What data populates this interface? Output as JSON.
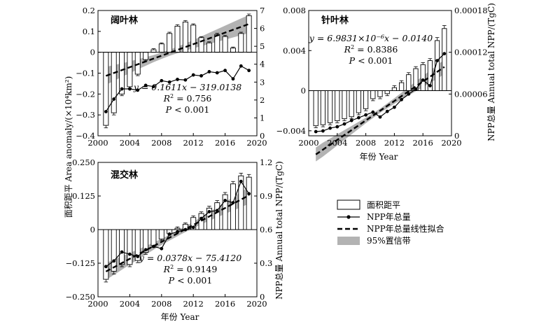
{
  "chart_data": [
    {
      "id": "broadleaf",
      "type": "bar",
      "title": "阔叶林",
      "x": [
        2001,
        2002,
        2003,
        2004,
        2005,
        2006,
        2007,
        2008,
        2009,
        2010,
        2011,
        2012,
        2013,
        2014,
        2015,
        2016,
        2017,
        2018,
        2019
      ],
      "area_anomaly": [
        -0.35,
        -0.29,
        -0.2,
        -0.165,
        -0.105,
        -0.035,
        0.012,
        0.04,
        0.09,
        0.125,
        0.145,
        0.13,
        0.07,
        0.045,
        0.085,
        0.075,
        0.02,
        0.09,
        0.175
      ],
      "area_err": [
        0.012,
        0.01,
        0.008,
        0.008,
        0.007,
        0.006,
        0.005,
        0.005,
        0.006,
        0.007,
        0.007,
        0.006,
        0.005,
        0.005,
        0.006,
        0.006,
        0.005,
        0.006,
        0.008
      ],
      "npp": [
        1.35,
        2.05,
        2.62,
        2.62,
        2.55,
        2.82,
        2.75,
        3.08,
        3.0,
        3.15,
        3.12,
        3.4,
        3.35,
        3.58,
        3.52,
        3.65,
        3.18,
        3.9,
        3.65
      ],
      "fit": {
        "slope": 0.1611,
        "intercept": -319.0138
      },
      "band_halfwidth": [
        0.5,
        0.44,
        0.38,
        0.33,
        0.28,
        0.24,
        0.2,
        0.18,
        0.17,
        0.18,
        0.2,
        0.23,
        0.27,
        0.31,
        0.35,
        0.39,
        0.43,
        0.47,
        0.5
      ],
      "ylim_left": [
        -0.4,
        0.2
      ],
      "yticks_left": [
        -0.4,
        -0.3,
        -0.2,
        -0.1,
        0,
        0.1,
        0.2
      ],
      "ytick_labels_left": [
        "−0.4",
        "−0.3",
        "−0.2",
        "−0.1",
        "0",
        "0.1",
        "0.2"
      ],
      "ylim_right": [
        0,
        7
      ],
      "yticks_right": [
        0,
        1,
        2,
        3,
        4,
        5,
        6,
        7
      ],
      "ytick_labels_right": [
        "0",
        "1",
        "2",
        "3",
        "4",
        "5",
        "6",
        "7"
      ],
      "xlim": [
        2000,
        2020
      ],
      "xticks": [
        2000,
        2004,
        2008,
        2012,
        2016,
        2020
      ],
      "xtick_labels": [
        "2000",
        "2004",
        "2008",
        "2012",
        "2016",
        "2020"
      ],
      "equation": "y = 0.1611x − 319.0138",
      "r2_label": "R",
      "r2_value": " = 0.756",
      "p_label": "P",
      "p_value": " < 0.001"
    },
    {
      "id": "conifer",
      "type": "bar",
      "title": "针叶林",
      "x": [
        2001,
        2002,
        2003,
        2004,
        2005,
        2006,
        2007,
        2008,
        2009,
        2010,
        2011,
        2012,
        2013,
        2014,
        2015,
        2016,
        2017,
        2018,
        2019
      ],
      "area_anomaly": [
        -0.0035,
        -0.0034,
        -0.0032,
        -0.003,
        -0.0028,
        -0.0026,
        -0.0022,
        -0.0018,
        -0.0008,
        -0.0006,
        -0.0003,
        0.0003,
        0.0008,
        0.0016,
        0.0022,
        0.0026,
        0.003,
        0.005,
        0.0062
      ],
      "area_err": [
        0.0002,
        0.0002,
        0.0002,
        0.0002,
        0.0002,
        0.0002,
        0.0002,
        0.0002,
        0.0002,
        0.0002,
        0.0002,
        0.0002,
        0.0002,
        0.0002,
        0.0002,
        0.0002,
        0.0002,
        0.0003,
        0.0003
      ],
      "npp": [
        6e-06,
        7e-06,
        1.1e-05,
        1.3e-05,
        1.7e-05,
        2.2e-05,
        2.6e-05,
        3e-05,
        3.4e-05,
        2.7e-05,
        3.5e-05,
        4.1e-05,
        5.2e-05,
        6e-05,
        6.7e-05,
        8e-05,
        7.2e-05,
        0.000108,
        0.000118
      ],
      "fit": {
        "slope": 6.9831e-06,
        "intercept": -0.014
      },
      "band_halfwidth": [
        1e-05,
        1e-05,
        9e-06,
        8e-06,
        7e-06,
        6e-06,
        5e-06,
        4e-06,
        3.5e-06,
        3e-06,
        3.5e-06,
        4e-06,
        5e-06,
        6e-06,
        7e-06,
        8e-06,
        9e-06,
        1e-05,
        1e-05
      ],
      "ylim_left": [
        -0.0045,
        0.008
      ],
      "yticks_left": [
        -0.004,
        0,
        0.004,
        0.008
      ],
      "ytick_labels_left": [
        "−0.004",
        "0",
        "0.004",
        "0.008"
      ],
      "ylim_right": [
        0,
        0.00018
      ],
      "yticks_right": [
        0,
        6e-05,
        0.00012,
        0.00018
      ],
      "ytick_labels_right": [
        "0",
        "0.00006",
        "0.00012",
        "0.00018"
      ],
      "xlim": [
        2000,
        2020
      ],
      "xticks": [
        2000,
        2004,
        2008,
        2012,
        2016,
        2020
      ],
      "xtick_labels": [
        "2000",
        "2004",
        "2008",
        "2012",
        "2016",
        "2020"
      ],
      "equation": "y = 6.9831×10⁻⁶x − 0.0140",
      "r2_label": "R",
      "r2_value": " = 0.8386",
      "p_label": "P",
      "p_value": " < 0.001",
      "xlabel": "年份 Year",
      "ylabel_right": "NPP总量 Annual total NPP/(TgC)"
    },
    {
      "id": "mixed",
      "type": "bar",
      "title": "混交林",
      "x": [
        2001,
        2002,
        2003,
        2004,
        2005,
        2006,
        2007,
        2008,
        2009,
        2010,
        2011,
        2012,
        2013,
        2014,
        2015,
        2016,
        2017,
        2018,
        2019
      ],
      "area_anomaly": [
        -0.185,
        -0.155,
        -0.13,
        -0.13,
        -0.115,
        -0.085,
        -0.06,
        -0.035,
        -0.015,
        0.005,
        0.02,
        0.045,
        0.06,
        0.08,
        0.1,
        0.13,
        0.17,
        0.2,
        0.195
      ],
      "area_err": [
        0.01,
        0.01,
        0.008,
        0.008,
        0.008,
        0.007,
        0.006,
        0.006,
        0.005,
        0.005,
        0.005,
        0.006,
        0.006,
        0.007,
        0.008,
        0.008,
        0.009,
        0.01,
        0.01
      ],
      "npp": [
        0.27,
        0.32,
        0.4,
        0.38,
        0.36,
        0.42,
        0.45,
        0.43,
        0.56,
        0.58,
        0.6,
        0.62,
        0.7,
        0.76,
        0.77,
        0.86,
        0.84,
        1.03,
        0.92
      ],
      "fit": {
        "slope": 0.0378,
        "intercept": -75.412
      },
      "band_halfwidth": [
        0.075,
        0.068,
        0.06,
        0.052,
        0.045,
        0.038,
        0.032,
        0.028,
        0.026,
        0.025,
        0.026,
        0.028,
        0.032,
        0.038,
        0.045,
        0.052,
        0.06,
        0.068,
        0.075
      ],
      "ylim_left": [
        -0.25,
        0.25
      ],
      "yticks_left": [
        -0.25,
        -0.125,
        0,
        0.125,
        0.25
      ],
      "ytick_labels_left": [
        "−0.250",
        "−0.125",
        "0",
        "0.125",
        "0.250"
      ],
      "ylim_right": [
        0,
        1.2
      ],
      "yticks_right": [
        0,
        0.3,
        0.6,
        0.9,
        1.2
      ],
      "ytick_labels_right": [
        "0",
        "0.3",
        "0.6",
        "0.9",
        "1.2"
      ],
      "xlim": [
        2000,
        2020
      ],
      "xticks": [
        2000,
        2004,
        2008,
        2012,
        2016,
        2020
      ],
      "xtick_labels": [
        "2000",
        "2004",
        "2008",
        "2012",
        "2016",
        "2020"
      ],
      "equation": "y = 0.0378x − 75.4120",
      "r2_label": "R",
      "r2_value": " = 0.9149",
      "p_label": "P",
      "p_value": " < 0.001",
      "xlabel": "年份 Year",
      "ylabel_right": "NPP总量 Annual total NPP/(TgC)"
    }
  ],
  "shared": {
    "ylabel_left": "面积距平 Area anomaly/(×10⁴km²)"
  },
  "legend": {
    "area": "面积距平",
    "npp": "NPP年总量",
    "fit": "NPP年总量线性拟合",
    "band": "95%置信带"
  },
  "colors": {
    "bar_fill": "#ffffff",
    "stroke": "#000000",
    "band": "#b3b3b3"
  }
}
